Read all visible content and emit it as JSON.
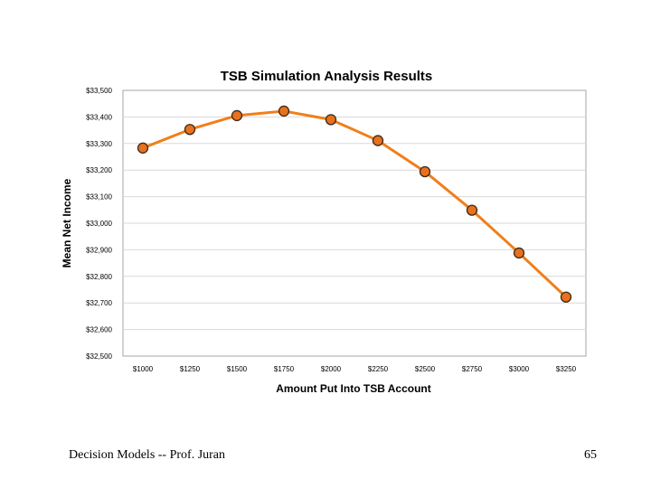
{
  "chart_data": {
    "type": "line",
    "title": "TSB Simulation Analysis Results",
    "xlabel": "Amount Put Into TSB Account",
    "ylabel": "Mean Net Income",
    "categories": [
      "$1000",
      "$1250",
      "$1500",
      "$1750",
      "$2000",
      "$2250",
      "$2500",
      "$2750",
      "$3000",
      "$3250"
    ],
    "series": [
      {
        "name": "Mean Net Income",
        "values": [
          33283,
          33353,
          33405,
          33422,
          33390,
          33311,
          33194,
          33049,
          32888,
          32722
        ]
      }
    ],
    "ylim": [
      32500,
      33500
    ],
    "yticks": [
      32500,
      32600,
      32700,
      32800,
      32900,
      33000,
      33100,
      33200,
      33300,
      33400,
      33500
    ],
    "ytick_labels": [
      "$32,500",
      "$32,600",
      "$32,700",
      "$32,800",
      "$32,900",
      "$33,000",
      "$33,100",
      "$33,200",
      "$33,300",
      "$33,400",
      "$33,500"
    ],
    "grid": true,
    "colors": {
      "line": "#f07f1a",
      "marker_fill": "#e8711c",
      "marker_edge": "#3a2a1a",
      "grid": "#d9d9d9",
      "frame": "#a6a6a6"
    }
  },
  "footer": {
    "left": "Decision Models -- Prof. Juran",
    "right": "65"
  }
}
